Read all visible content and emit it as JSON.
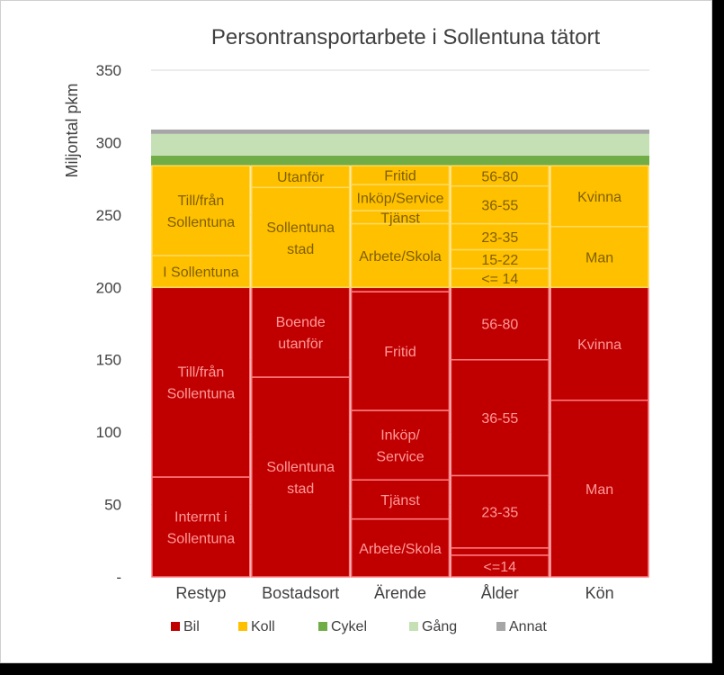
{
  "chart_data": {
    "type": "bar",
    "title": "Persontransportarbete  i Sollentuna tätort",
    "ylabel": "Miljontal pkm",
    "ylim": [
      0,
      350
    ],
    "yticks": [
      0,
      50,
      100,
      150,
      200,
      250,
      300,
      350
    ],
    "ytick_labels": [
      "-",
      "50",
      "100",
      "150",
      "200",
      "250",
      "300",
      "350"
    ],
    "grid": true,
    "legend_position": "bottom",
    "categories": [
      "Restyp",
      "Bostadsort",
      "Ärende",
      "Ålder",
      "Kön"
    ],
    "colors": {
      "Bil": "#c00000",
      "Koll": "#ffc000",
      "Cykel": "#70ad47",
      "Gång": "#c5e0b4",
      "Annat": "#a6a6a6"
    },
    "series": [
      {
        "name": "Bil",
        "stacks": [
          [
            {
              "label": "Interrnt i Sollentuna",
              "value": 69
            },
            {
              "label": "Till/från Sollentuna",
              "value": 131
            }
          ],
          [
            {
              "label": "Sollentuna stad",
              "value": 138
            },
            {
              "label": "Boende utanför",
              "value": 62
            }
          ],
          [
            {
              "label": "Arbete/Skola",
              "value": 40
            },
            {
              "label": "Tjänst",
              "value": 27
            },
            {
              "label": "Inköp/ Service",
              "value": 48
            },
            {
              "label": "Fritid",
              "value": 82
            },
            {
              "label": "",
              "value": 3
            }
          ],
          [
            {
              "label": "<=14",
              "value": 15
            },
            {
              "label": "",
              "value": 5
            },
            {
              "label": "23-35",
              "value": 50
            },
            {
              "label": "36-55",
              "value": 80
            },
            {
              "label": "56-80",
              "value": 50
            }
          ],
          [
            {
              "label": "Man",
              "value": 122
            },
            {
              "label": "Kvinna",
              "value": 78
            }
          ]
        ]
      },
      {
        "name": "Koll",
        "stacks": [
          [
            {
              "label": "I Sollentuna",
              "value": 22
            },
            {
              "label": "Till/från Sollentuna",
              "value": 62
            }
          ],
          [
            {
              "label": "Sollentuna stad",
              "value": 69
            },
            {
              "label": "Utanför",
              "value": 15
            }
          ],
          [
            {
              "label": "Arbete/Skola",
              "value": 44
            },
            {
              "label": "Tjänst",
              "value": 9
            },
            {
              "label": "Inköp/Service",
              "value": 18
            },
            {
              "label": "Fritid",
              "value": 13
            }
          ],
          [
            {
              "label": "<= 14",
              "value": 13
            },
            {
              "label": "15-22",
              "value": 13
            },
            {
              "label": "23-35",
              "value": 18
            },
            {
              "label": "36-55",
              "value": 26
            },
            {
              "label": "56-80",
              "value": 14
            }
          ],
          [
            {
              "label": "Man",
              "value": 42
            },
            {
              "label": "Kvinna",
              "value": 42
            }
          ]
        ]
      },
      {
        "name": "Cykel",
        "value": 7
      },
      {
        "name": "Gång",
        "value": 15
      },
      {
        "name": "Annat",
        "value": 3
      }
    ]
  }
}
